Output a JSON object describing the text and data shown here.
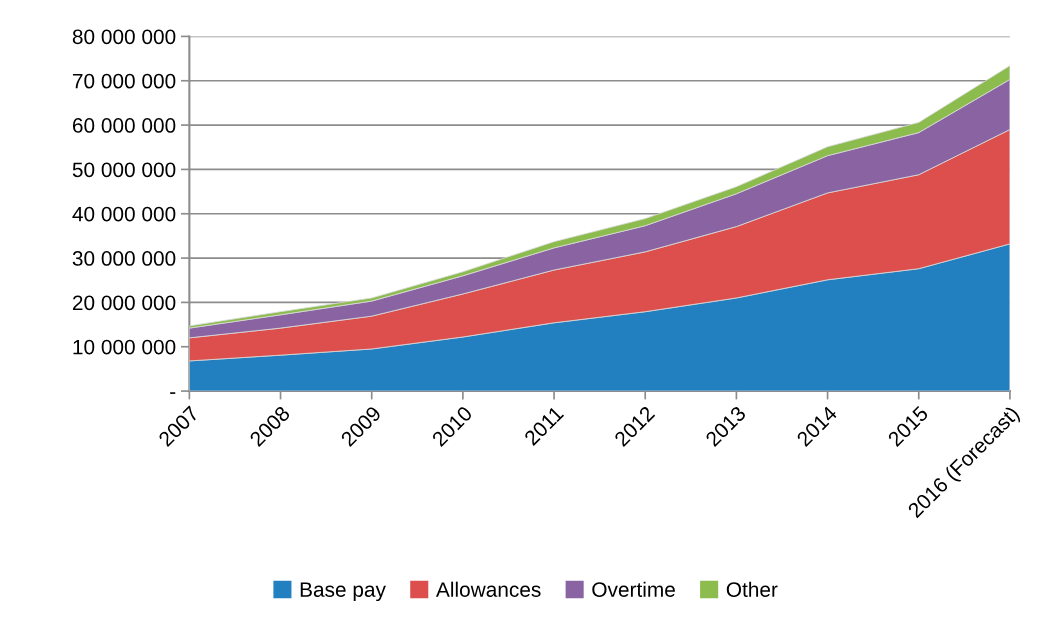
{
  "chart_data": {
    "type": "area",
    "stacked": true,
    "categories": [
      "2007",
      "2008",
      "2009",
      "2010",
      "2011",
      "2012",
      "2013",
      "2014",
      "2015",
      "2016 (Forecast)"
    ],
    "series": [
      {
        "name": "Base pay",
        "color": "#2280c0",
        "values": [
          6800000,
          8100000,
          9500000,
          12200000,
          15400000,
          17900000,
          21000000,
          25100000,
          27600000,
          33200000
        ]
      },
      {
        "name": "Allowances",
        "color": "#dc4f4c",
        "values": [
          5200000,
          6100000,
          7400000,
          9700000,
          11900000,
          13500000,
          16100000,
          19600000,
          21200000,
          25800000
        ]
      },
      {
        "name": "Overtime",
        "color": "#8a64a2",
        "values": [
          2200000,
          3000000,
          3400000,
          4100000,
          5000000,
          5900000,
          7400000,
          8400000,
          9500000,
          11300000
        ]
      },
      {
        "name": "Other",
        "color": "#8cbc4e",
        "values": [
          500000,
          700000,
          700000,
          900000,
          1400000,
          1600000,
          1600000,
          2000000,
          2300000,
          3100000
        ]
      }
    ],
    "ylim": [
      0,
      80000000
    ],
    "yticks": [
      {
        "value": 0,
        "label": "-"
      },
      {
        "value": 10000000,
        "label": "10 000 000"
      },
      {
        "value": 20000000,
        "label": "20 000 000"
      },
      {
        "value": 30000000,
        "label": "30 000 000"
      },
      {
        "value": 40000000,
        "label": "40 000 000"
      },
      {
        "value": 50000000,
        "label": "50 000 000"
      },
      {
        "value": 60000000,
        "label": "60 000 000"
      },
      {
        "value": 70000000,
        "label": "70 000 000"
      },
      {
        "value": 80000000,
        "label": "80 000 000"
      }
    ],
    "grid": "y",
    "legend": "bottom"
  }
}
